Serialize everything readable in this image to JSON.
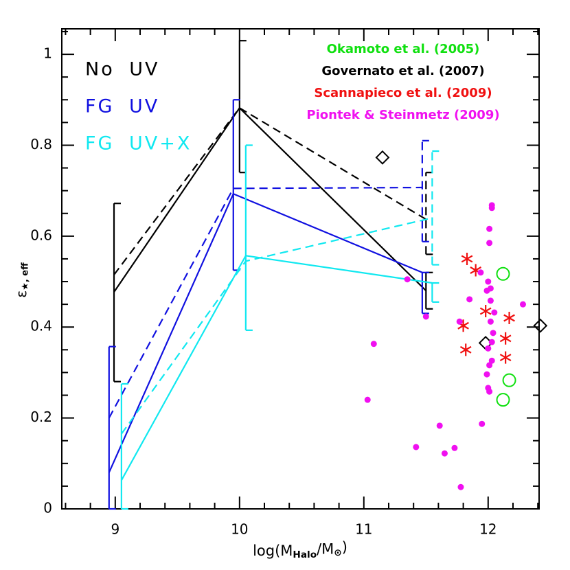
{
  "chart_data": {
    "type": "line",
    "xlabel": [
      {
        "text": "log(M"
      },
      {
        "text": "Halo",
        "sub": true
      },
      {
        "text": "/M"
      },
      {
        "text": "⊙",
        "sub": true
      },
      {
        "text": ")"
      }
    ],
    "ylabel": [
      {
        "text": "ε"
      },
      {
        "text": "★, eff",
        "sub": true
      }
    ],
    "xlim": [
      8.57,
      12.41
    ],
    "ylim": [
      0,
      1.056
    ],
    "xticks": [
      9,
      10,
      11,
      12
    ],
    "yticks": [
      0,
      0.2,
      0.4,
      0.6,
      0.8,
      1
    ],
    "xminorticks": [
      8.6,
      8.8,
      9.2,
      9.4,
      9.6,
      9.8,
      10.2,
      10.4,
      10.6,
      10.8,
      11.2,
      11.4,
      11.6,
      11.8,
      12.2,
      12.4
    ],
    "yminorticks": [
      0.05,
      0.1,
      0.15,
      0.25,
      0.3,
      0.35,
      0.45,
      0.5,
      0.55,
      0.65,
      0.7,
      0.75,
      0.85,
      0.9,
      0.95,
      1.05
    ],
    "series": [
      {
        "name": "No UV",
        "color": "#000000",
        "dashed": false,
        "x": [
          8.99,
          10.0,
          11.5
        ],
        "y": [
          0.477,
          0.882,
          0.48
        ],
        "err_lo": [
          0.28,
          0.74,
          0.44
        ],
        "err_hi": [
          0.672,
          1.03,
          0.52
        ]
      },
      {
        "color": "#000000",
        "dashed": true,
        "x": [
          8.99,
          10.0,
          11.5
        ],
        "y": [
          0.515,
          0.882,
          0.637
        ],
        "err_lo": [
          null,
          null,
          0.56
        ],
        "err_hi": [
          null,
          null,
          0.74
        ]
      },
      {
        "name": "FG UV",
        "color": "#1010e0",
        "dashed": false,
        "x": [
          8.95,
          9.95,
          11.47
        ],
        "y": [
          0.08,
          0.693,
          0.52
        ],
        "err_lo": [
          0,
          0.525,
          0.43
        ],
        "err_hi": [
          0.357,
          0.9,
          0.52
        ]
      },
      {
        "color": "#1010e0",
        "dashed": true,
        "x": [
          8.95,
          9.95,
          11.47
        ],
        "y": [
          0.2,
          0.705,
          0.707
        ],
        "err_lo": [
          null,
          null,
          0.588
        ],
        "err_hi": [
          null,
          null,
          0.81
        ]
      },
      {
        "name": "FG UV+X",
        "color": "#10e8f0",
        "dashed": false,
        "x": [
          9.05,
          10.05,
          11.55
        ],
        "y": [
          0.063,
          0.557,
          0.497
        ],
        "err_lo": [
          0,
          0.393,
          0.455
        ],
        "err_hi": [
          0.275,
          0.8,
          0.497
        ]
      },
      {
        "color": "#10e8f0",
        "dashed": true,
        "x": [
          9.05,
          10.05,
          11.55
        ],
        "y": [
          0.165,
          0.545,
          0.64
        ],
        "err_lo": [
          null,
          null,
          0.537
        ],
        "err_hi": [
          null,
          null,
          0.787
        ]
      }
    ],
    "observations": [
      {
        "name": "Okamoto et al. (2005)",
        "color": "#10e010",
        "marker": "circle-open",
        "x": [
          12.12,
          12.17,
          12.12
        ],
        "y": [
          0.517,
          0.283,
          0.24
        ]
      },
      {
        "name": "Governato et al. (2007)",
        "color": "#000000",
        "marker": "diamond-open",
        "x": [
          11.15,
          11.98,
          12.42
        ],
        "y": [
          0.773,
          0.365,
          0.403
        ]
      },
      {
        "name": "Scannapieco et al. (2009)",
        "color": "#f01010",
        "marker": "asterisk",
        "x": [
          11.83,
          11.9,
          11.8,
          11.82,
          11.98,
          12.17,
          12.14,
          12.14
        ],
        "y": [
          0.55,
          0.525,
          0.403,
          0.35,
          0.435,
          0.42,
          0.375,
          0.333
        ]
      },
      {
        "name": "Piontek & Steinmetz (2009)",
        "color": "#f010f0",
        "marker": "dot",
        "x": [
          12.03,
          12.03,
          12.01,
          12.01,
          11.94,
          12.0,
          12.02,
          11.99,
          12.02,
          11.85,
          12.05,
          11.77,
          12.02,
          12.04,
          12.03,
          12.0,
          12.03,
          12.01,
          11.99,
          12.0,
          12.01,
          11.95,
          11.35,
          11.5,
          11.08,
          11.03,
          11.61,
          11.42,
          11.65,
          11.73,
          11.78,
          12.28
        ],
        "y": [
          0.668,
          0.662,
          0.616,
          0.585,
          0.52,
          0.5,
          0.485,
          0.48,
          0.458,
          0.461,
          0.432,
          0.412,
          0.412,
          0.387,
          0.367,
          0.353,
          0.326,
          0.316,
          0.296,
          0.266,
          0.258,
          0.187,
          0.505,
          0.423,
          0.363,
          0.24,
          0.183,
          0.136,
          0.122,
          0.134,
          0.048,
          0.45
        ]
      }
    ]
  }
}
